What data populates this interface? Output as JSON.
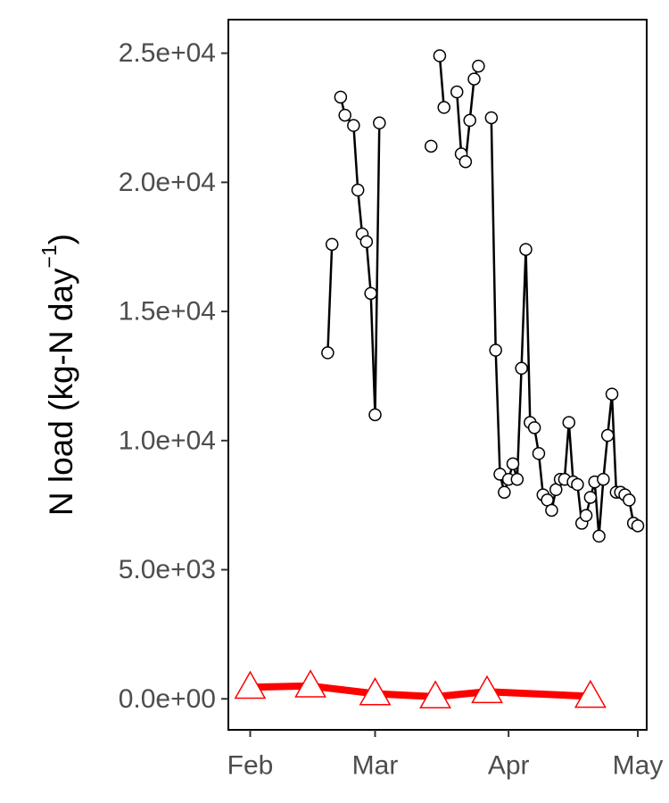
{
  "chart_data": {
    "type": "line",
    "title": "",
    "xlabel": "",
    "ylabel": {
      "main": "N load (kg-N day",
      "sup": "−1",
      "close": ")"
    },
    "x_ticks": [
      {
        "date": "2016-02-01",
        "label": "Feb"
      },
      {
        "date": "2016-03-01",
        "label": "Mar"
      },
      {
        "date": "2016-04-01",
        "label": "Apr"
      },
      {
        "date": "2016-05-01",
        "label": "May"
      }
    ],
    "y_ticks": [
      {
        "value": 0,
        "label": "0.0e+00"
      },
      {
        "value": 5000,
        "label": "5.0e+03"
      },
      {
        "value": 10000,
        "label": "1.0e+04"
      },
      {
        "value": 15000,
        "label": "1.5e+04"
      },
      {
        "value": 20000,
        "label": "2.0e+04"
      },
      {
        "value": 25000,
        "label": "2.5e+04"
      }
    ],
    "xlim": [
      "2016-01-29",
      "2016-05-01"
    ],
    "ylim": [
      -1200,
      26300
    ],
    "grid": false,
    "legend": "none",
    "series": [
      {
        "marker": "circle",
        "color": "#000000",
        "fill": "#ffffff",
        "segments": [
          [
            {
              "x": "2016-02-19",
              "y": 13400
            },
            {
              "x": "2016-02-20",
              "y": 17600
            }
          ],
          [
            {
              "x": "2016-02-22",
              "y": 23300
            },
            {
              "x": "2016-02-23",
              "y": 22600
            },
            {
              "x": "2016-02-25",
              "y": 22200
            },
            {
              "x": "2016-02-26",
              "y": 19700
            },
            {
              "x": "2016-02-27",
              "y": 18000
            },
            {
              "x": "2016-02-28",
              "y": 17700
            },
            {
              "x": "2016-02-29",
              "y": 15700
            },
            {
              "x": "2016-03-01",
              "y": 11000
            },
            {
              "x": "2016-03-02",
              "y": 22300
            }
          ],
          [
            {
              "x": "2016-03-14",
              "y": 21400
            }
          ],
          [
            {
              "x": "2016-03-16",
              "y": 24900
            },
            {
              "x": "2016-03-17",
              "y": 22900
            }
          ],
          [
            {
              "x": "2016-03-20",
              "y": 23500
            },
            {
              "x": "2016-03-21",
              "y": 21100
            },
            {
              "x": "2016-03-22",
              "y": 20800
            },
            {
              "x": "2016-03-23",
              "y": 22400
            },
            {
              "x": "2016-03-24",
              "y": 24000
            },
            {
              "x": "2016-03-25",
              "y": 24500
            }
          ],
          [
            {
              "x": "2016-03-28",
              "y": 22500
            },
            {
              "x": "2016-03-29",
              "y": 13500
            },
            {
              "x": "2016-03-30",
              "y": 8700
            },
            {
              "x": "2016-03-31",
              "y": 8000
            },
            {
              "x": "2016-04-01",
              "y": 8500
            },
            {
              "x": "2016-04-02",
              "y": 9100
            },
            {
              "x": "2016-04-03",
              "y": 8500
            },
            {
              "x": "2016-04-04",
              "y": 12800
            },
            {
              "x": "2016-04-05",
              "y": 17400
            },
            {
              "x": "2016-04-06",
              "y": 10700
            },
            {
              "x": "2016-04-07",
              "y": 10500
            },
            {
              "x": "2016-04-08",
              "y": 9500
            },
            {
              "x": "2016-04-09",
              "y": 7900
            },
            {
              "x": "2016-04-10",
              "y": 7700
            },
            {
              "x": "2016-04-11",
              "y": 7300
            },
            {
              "x": "2016-04-12",
              "y": 8100
            },
            {
              "x": "2016-04-13",
              "y": 8500
            },
            {
              "x": "2016-04-14",
              "y": 8500
            },
            {
              "x": "2016-04-15",
              "y": 10700
            },
            {
              "x": "2016-04-16",
              "y": 8400
            },
            {
              "x": "2016-04-17",
              "y": 8300
            },
            {
              "x": "2016-04-18",
              "y": 6800
            },
            {
              "x": "2016-04-19",
              "y": 7100
            },
            {
              "x": "2016-04-20",
              "y": 7800
            },
            {
              "x": "2016-04-21",
              "y": 8400
            },
            {
              "x": "2016-04-22",
              "y": 6300
            },
            {
              "x": "2016-04-23",
              "y": 8500
            },
            {
              "x": "2016-04-24",
              "y": 10200
            },
            {
              "x": "2016-04-25",
              "y": 11800
            },
            {
              "x": "2016-04-26",
              "y": 8000
            },
            {
              "x": "2016-04-27",
              "y": 8000
            },
            {
              "x": "2016-04-28",
              "y": 7900
            },
            {
              "x": "2016-04-29",
              "y": 7700
            },
            {
              "x": "2016-04-30",
              "y": 6800
            },
            {
              "x": "2016-05-01",
              "y": 6700
            }
          ]
        ]
      },
      {
        "marker": "triangle",
        "color": "#ff0000",
        "fill": "#ffffff",
        "segments": [
          [
            {
              "x": "2016-02-01",
              "y": 450
            },
            {
              "x": "2016-02-15",
              "y": 500
            },
            {
              "x": "2016-03-01",
              "y": 200
            },
            {
              "x": "2016-03-15",
              "y": 80
            },
            {
              "x": "2016-03-27",
              "y": 280
            },
            {
              "x": "2016-04-20",
              "y": 100
            }
          ]
        ]
      }
    ]
  }
}
